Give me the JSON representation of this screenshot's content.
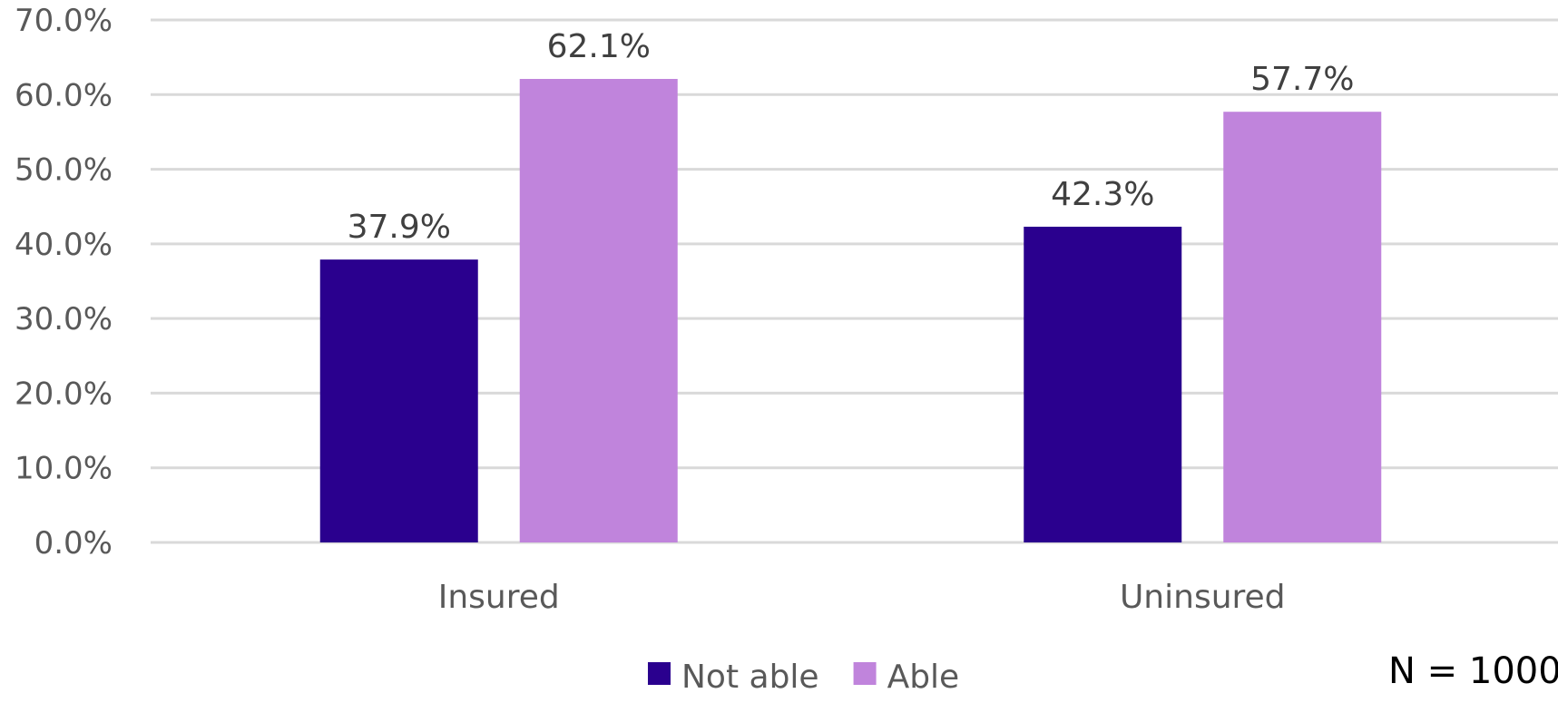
{
  "chart_data": {
    "type": "bar",
    "categories": [
      "Insured",
      "Uninsured"
    ],
    "series": [
      {
        "name": "Not able",
        "values": [
          37.9,
          42.3
        ],
        "color": "#2a008e"
      },
      {
        "name": "Able",
        "values": [
          62.1,
          57.7
        ],
        "color": "#c084dc"
      }
    ],
    "value_labels": [
      [
        "37.9%",
        "42.3%"
      ],
      [
        "62.1%",
        "57.7%"
      ]
    ],
    "ylim": [
      0,
      70
    ],
    "y_ticks": [
      0,
      10,
      20,
      30,
      40,
      50,
      60,
      70
    ],
    "y_tick_labels": [
      "0.0%",
      "10.0%",
      "20.0%",
      "30.0%",
      "40.0%",
      "50.0%",
      "60.0%",
      "70.0%"
    ],
    "grid": true,
    "gridline_color": "#d9d9d9",
    "legend_position": "bottom",
    "note": "N = 1000",
    "title": "",
    "xlabel": "",
    "ylabel": ""
  }
}
